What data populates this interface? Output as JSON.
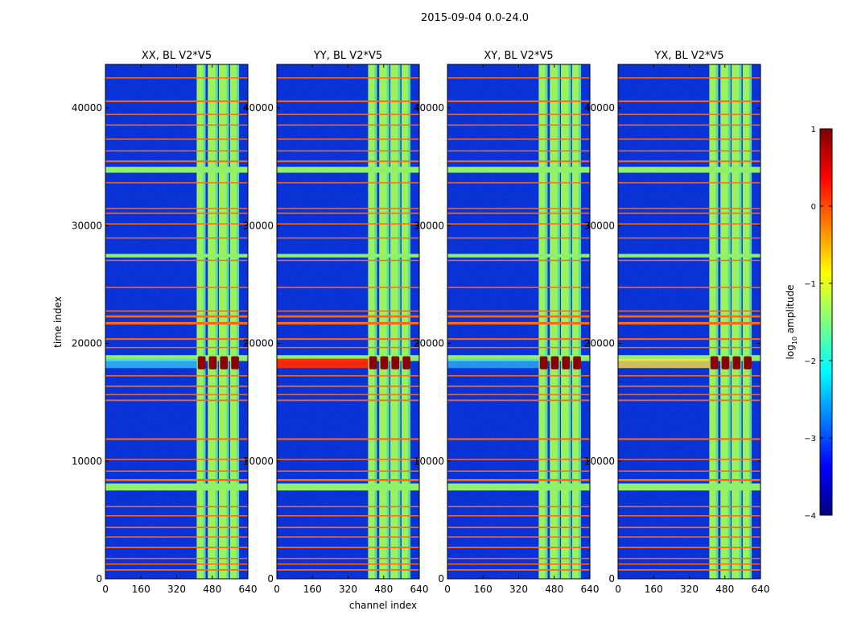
{
  "chart_data": {
    "type": "heatmap",
    "suptitle": "2015-09-04 0.0-24.0",
    "colorscale": "jet",
    "panels": [
      {
        "title": "XX, BL V2*V5",
        "cross_pol": false
      },
      {
        "title": "YY, BL V2*V5",
        "cross_pol": false
      },
      {
        "title": "XY, BL V2*V5",
        "cross_pol": true
      },
      {
        "title": "YX, BL V2*V5",
        "cross_pol": true
      }
    ],
    "x_axis": {
      "label": "channel index",
      "range": [
        0,
        640
      ],
      "ticks": [
        0,
        160,
        320,
        480,
        640
      ]
    },
    "y_axis": {
      "label": "time index",
      "range": [
        0,
        43700
      ],
      "ticks": [
        0,
        10000,
        20000,
        30000,
        40000
      ]
    },
    "colorbar": {
      "label_prefix": "log",
      "label_sub": "10",
      "label_suffix": " amplitude",
      "range": [
        -4,
        1
      ],
      "ticks": [
        1,
        0,
        -1,
        -2,
        -3,
        -4
      ]
    },
    "bright_channel_bands": [
      {
        "from": 410,
        "to": 450
      },
      {
        "from": 460,
        "to": 505
      },
      {
        "from": 510,
        "to": 555
      },
      {
        "from": 560,
        "to": 600
      }
    ],
    "flagged_time_rows": [
      {
        "t": 700,
        "w": 120
      },
      {
        "t": 1200,
        "w": 100
      },
      {
        "t": 1700,
        "w": 80
      },
      {
        "t": 2600,
        "w": 120
      },
      {
        "t": 3500,
        "w": 100
      },
      {
        "t": 4300,
        "w": 120
      },
      {
        "t": 5300,
        "w": 100
      },
      {
        "t": 6100,
        "w": 80
      },
      {
        "t": 8300,
        "w": 180
      },
      {
        "t": 9100,
        "w": 100
      },
      {
        "t": 10100,
        "w": 100
      },
      {
        "t": 11800,
        "w": 140
      },
      {
        "t": 15100,
        "w": 120
      },
      {
        "t": 15600,
        "w": 100
      },
      {
        "t": 16300,
        "w": 120
      },
      {
        "t": 17200,
        "w": 100
      },
      {
        "t": 19600,
        "w": 100
      },
      {
        "t": 20300,
        "w": 140
      },
      {
        "t": 21600,
        "w": 220
      },
      {
        "t": 22200,
        "w": 180
      },
      {
        "t": 22700,
        "w": 100
      },
      {
        "t": 24700,
        "w": 100
      },
      {
        "t": 27000,
        "w": 100
      },
      {
        "t": 28900,
        "w": 100
      },
      {
        "t": 30100,
        "w": 100
      },
      {
        "t": 31000,
        "w": 100
      },
      {
        "t": 31400,
        "w": 100
      },
      {
        "t": 33600,
        "w": 100
      },
      {
        "t": 35400,
        "w": 140
      },
      {
        "t": 36300,
        "w": 100
      },
      {
        "t": 37300,
        "w": 100
      },
      {
        "t": 38500,
        "w": 100
      },
      {
        "t": 39400,
        "w": 100
      },
      {
        "t": 40500,
        "w": 140
      },
      {
        "t": 42500,
        "w": 100
      }
    ],
    "green_time_bands": [
      {
        "from": 7500,
        "to": 8100
      },
      {
        "from": 34500,
        "to": 35000
      },
      {
        "from": 27300,
        "to": 27600
      },
      {
        "from": 18500,
        "to": 19000
      }
    ],
    "saturated_event": {
      "t_from": 17800,
      "t_to": 18900,
      "channels": [
        [
          415,
          450
        ],
        [
          465,
          500
        ],
        [
          515,
          550
        ],
        [
          565,
          600
        ]
      ]
    },
    "rfi_streak": {
      "t_from": 17900,
      "t_to": 18700,
      "max_channel": 410
    }
  }
}
